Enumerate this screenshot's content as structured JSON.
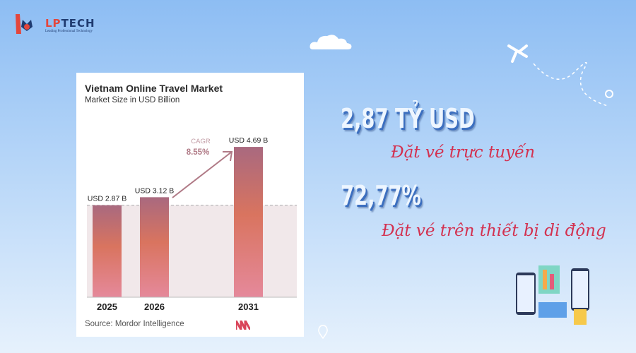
{
  "logo": {
    "name_part1": "LP",
    "name_part2": "TECH",
    "tagline": "Leading Professional Technology"
  },
  "chart_data": {
    "type": "bar",
    "title": "Vietnam Online Travel Market",
    "subtitle": "Market Size in USD Billion",
    "categories": [
      "2025",
      "2026",
      "2031"
    ],
    "values": [
      2.87,
      3.12,
      4.69
    ],
    "data_labels": [
      "USD 2.87 B",
      "USD 3.12 B",
      "USD 4.69 B"
    ],
    "annotation": {
      "label": "CAGR",
      "value": "8.55%"
    },
    "reference_line": 2.87,
    "source": "Source: Mordor Intelligence",
    "colors": {
      "bar_top": "#a9697f",
      "bar_mid": "#d9745f",
      "bar_bottom": "#e5899b",
      "shade": "#f1e8ea"
    }
  },
  "stats": [
    {
      "value": "2,87 TỶ USD",
      "caption": "Đặt vé trực tuyến"
    },
    {
      "value": "72,77%",
      "caption": "Đặt vé trên thiết bị di động"
    }
  ]
}
